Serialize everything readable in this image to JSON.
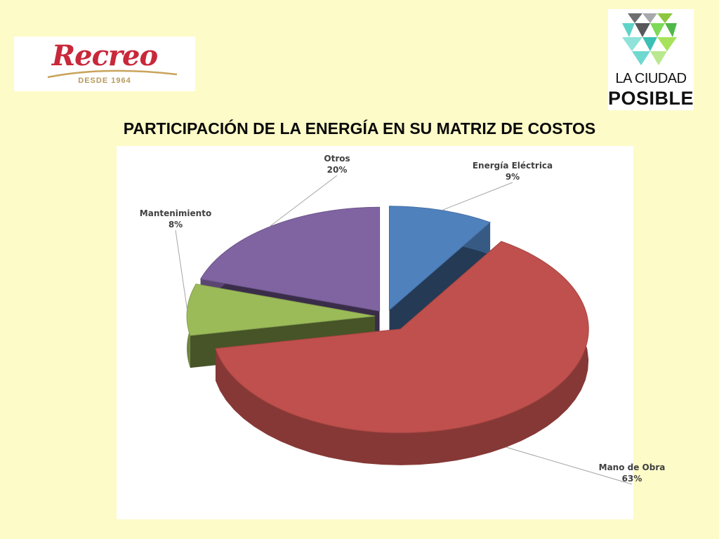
{
  "logos": {
    "left": {
      "script_text": "Recreo",
      "tagline": "DESDE 1964"
    },
    "right": {
      "line1": "LA CIUDAD",
      "line2": "POSIBLE"
    }
  },
  "slide": {
    "title": "PARTICIPACIÓN DE LA ENERGÍA EN SU MATRIZ DE COSTOS"
  },
  "chart_data": {
    "type": "pie",
    "style": "3d-exploded",
    "legend": "none",
    "slices": [
      {
        "label": "Energía Eléctrica",
        "value": 9,
        "pct_text": "9%",
        "color": "#4f81bd"
      },
      {
        "label": "Mano de Obra",
        "value": 63,
        "pct_text": "63%",
        "color": "#c0504d"
      },
      {
        "label": "Mantenimiento",
        "value": 8,
        "pct_text": "8%",
        "color": "#9bbb59"
      },
      {
        "label": "Otros",
        "value": 20,
        "pct_text": "20%",
        "color": "#8064a2"
      }
    ]
  }
}
